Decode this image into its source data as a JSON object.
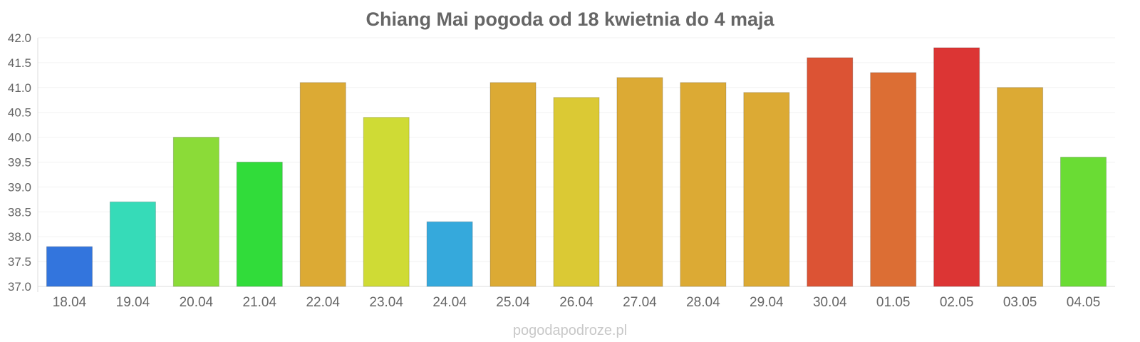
{
  "chart_data": {
    "type": "bar",
    "title": "Chiang Mai pogoda od 18 kwietnia do 4 maja",
    "xlabel": "",
    "ylabel": "",
    "ylim": [
      37.0,
      42.0
    ],
    "yticks": [
      "37.0",
      "37.5",
      "38.0",
      "38.5",
      "39.0",
      "39.5",
      "40.0",
      "40.5",
      "41.0",
      "41.5",
      "42.0"
    ],
    "grid": true,
    "legend": "none",
    "categories": [
      "18.04",
      "19.04",
      "20.04",
      "21.04",
      "22.04",
      "23.04",
      "24.04",
      "25.04",
      "26.04",
      "27.04",
      "28.04",
      "29.04",
      "30.04",
      "01.05",
      "02.05",
      "03.05",
      "04.05"
    ],
    "values": [
      37.8,
      38.7,
      40.0,
      39.5,
      41.1,
      40.4,
      38.3,
      41.1,
      40.8,
      41.2,
      41.1,
      40.9,
      41.6,
      41.3,
      41.8,
      41.0,
      39.6
    ],
    "colors": [
      "#3375dd",
      "#36dbb8",
      "#8bdb38",
      "#31dc3a",
      "#dcaa34",
      "#cfdb35",
      "#35a9dc",
      "#dcaa34",
      "#dbc934",
      "#dcaa34",
      "#dcaa34",
      "#dcaa34",
      "#dc5334",
      "#dc6e34",
      "#dc3534",
      "#dcaa34",
      "#6adc34"
    ]
  },
  "watermark": "pogodapodroze.pl"
}
